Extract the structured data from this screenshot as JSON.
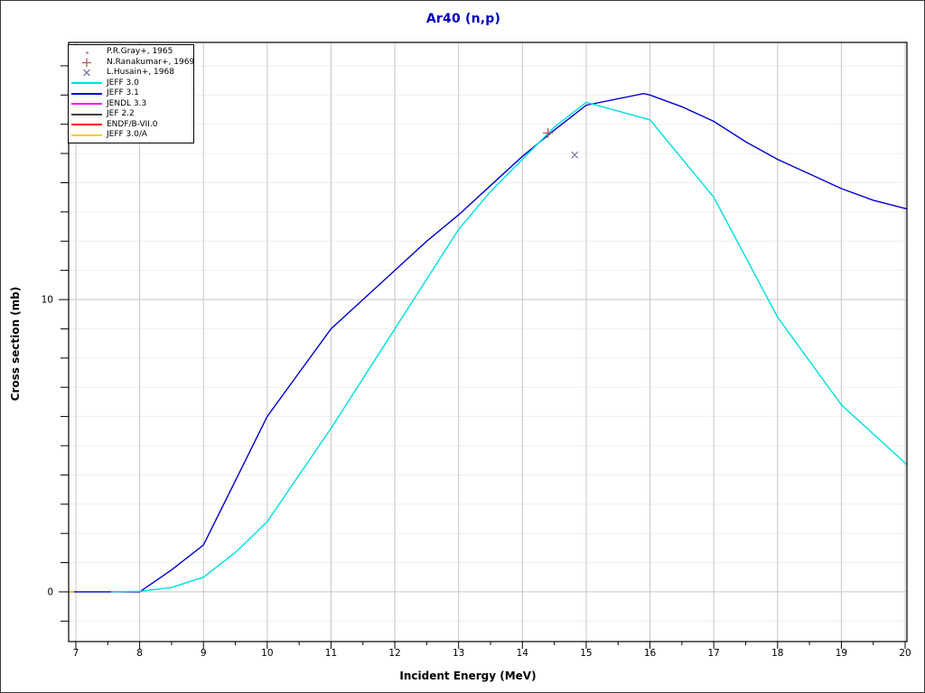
{
  "window": {
    "background": "#ffffff",
    "border_color": "#3a3a3a"
  },
  "chart_data": {
    "type": "line",
    "title": "Ar40 (n,p)",
    "title_color": "#0000bb",
    "xlabel": "Incident Energy (MeV)",
    "ylabel": "Cross section (mb)",
    "xlim": [
      6.887,
      20.028
    ],
    "ylim": [
      -1.7,
      18.8
    ],
    "x_ticks": [
      7,
      8,
      9,
      10,
      11,
      12,
      13,
      14,
      15,
      16,
      17,
      18,
      19,
      20
    ],
    "x_minor_tick_step": 0.5,
    "y_tick_min": -1,
    "y_tick_max": 18,
    "y_tick_step": 1,
    "y_labeled_ticks": [
      0,
      10
    ],
    "grid": {
      "major_color": "#c6c6c6",
      "minor_color": "#efefef",
      "axis_color": "#000000"
    },
    "legend": {
      "position": "top-left",
      "entries": [
        {
          "label": "P.R.Gray+, 1965",
          "type": "dot",
          "color": "#b89898"
        },
        {
          "label": "N.Ranakumar+, 1969",
          "type": "plus",
          "color": "#b06060"
        },
        {
          "label": "L.Husain+, 1968",
          "type": "cross",
          "color": "#7878a8"
        },
        {
          "label": "JEFF 3.0",
          "type": "line",
          "color": "#00dede"
        },
        {
          "label": "JEFF 3.1",
          "type": "line",
          "color": "#0000cd"
        },
        {
          "label": "JENDL 3.3",
          "type": "line",
          "color": "#ff00ff"
        },
        {
          "label": "JEF 2.2",
          "type": "line",
          "color": "#404040"
        },
        {
          "label": "ENDF/B-VII.0",
          "type": "line",
          "color": "#ff0000"
        },
        {
          "label": "JEFF 3.0/A",
          "type": "line",
          "color": "#ffcc00"
        }
      ]
    },
    "curves": [
      {
        "name": "JEFF 3.1",
        "color": "#0000cd",
        "points": [
          [
            6.89,
            0
          ],
          [
            8.0,
            0
          ],
          [
            8.5,
            0.75
          ],
          [
            9.0,
            1.6
          ],
          [
            9.5,
            3.8
          ],
          [
            10.0,
            6.0
          ],
          [
            10.5,
            7.5
          ],
          [
            11.0,
            9.0
          ],
          [
            11.5,
            10.0
          ],
          [
            12.0,
            11.0
          ],
          [
            12.5,
            12.0
          ],
          [
            13.0,
            12.9
          ],
          [
            13.5,
            13.9
          ],
          [
            14.0,
            14.9
          ],
          [
            14.5,
            15.8
          ],
          [
            15.0,
            16.65
          ],
          [
            15.9,
            17.05
          ],
          [
            16.0,
            17.0
          ],
          [
            16.5,
            16.6
          ],
          [
            17.0,
            16.1
          ],
          [
            17.5,
            15.4
          ],
          [
            18.0,
            14.8
          ],
          [
            18.5,
            14.3
          ],
          [
            19.0,
            13.8
          ],
          [
            19.5,
            13.4
          ],
          [
            20.03,
            13.1
          ]
        ]
      },
      {
        "name": "JEFF 3.0/A",
        "color": "#ffcc00",
        "points": [
          [
            6.89,
            0
          ],
          [
            6.97,
            0
          ]
        ]
      },
      {
        "name": "JEFF 3.0",
        "color": "#00dede",
        "points": [
          [
            7.55,
            0
          ],
          [
            8.0,
            0.02
          ],
          [
            8.5,
            0.15
          ],
          [
            9.0,
            0.5
          ],
          [
            9.5,
            1.35
          ],
          [
            10.0,
            2.4
          ],
          [
            10.5,
            4.0
          ],
          [
            11.0,
            5.6
          ],
          [
            11.5,
            7.3
          ],
          [
            12.0,
            9.0
          ],
          [
            12.5,
            10.7
          ],
          [
            13.0,
            12.4
          ],
          [
            13.5,
            13.7
          ],
          [
            14.0,
            14.8
          ],
          [
            14.5,
            15.9
          ],
          [
            15.0,
            16.75
          ],
          [
            16.0,
            16.15
          ],
          [
            17.0,
            13.5
          ],
          [
            18.0,
            9.4
          ],
          [
            19.0,
            6.4
          ],
          [
            20.03,
            4.35
          ]
        ]
      }
    ],
    "experimental_points": [
      {
        "label": "P.R.Gray+, 1965",
        "marker": "dot",
        "color": "#b89898",
        "points": []
      },
      {
        "label": "N.Ranakumar+, 1969",
        "marker": "plus",
        "color": "#b06060",
        "points": [
          [
            14.4,
            15.7
          ]
        ]
      },
      {
        "label": "L.Husain+, 1968",
        "marker": "cross",
        "color": "#7878a8",
        "points": [
          [
            14.82,
            14.95
          ]
        ]
      }
    ]
  }
}
